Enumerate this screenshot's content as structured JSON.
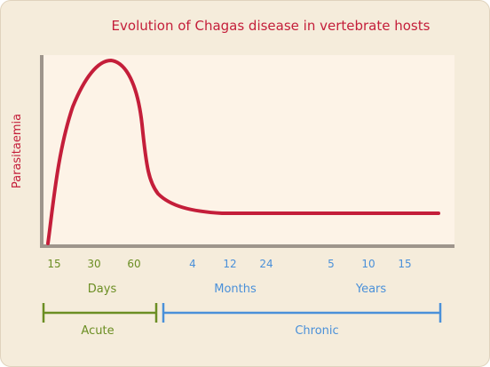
{
  "title": "Evolution of Chagas disease in vertebrate hosts",
  "y_label": "Parasitaemia",
  "x_ticks": {
    "days": [
      "15",
      "30",
      "60"
    ],
    "months": [
      "4",
      "12",
      "24"
    ],
    "years": [
      "5",
      "10",
      "15"
    ]
  },
  "units": {
    "days": "Days",
    "months": "Months",
    "years": "Years"
  },
  "phases": {
    "acute": "Acute",
    "chronic": "Chronic"
  },
  "colors": {
    "curve": "#c41e3a",
    "title": "#c41e3a",
    "axis": "#9e958c",
    "plot_bg": "#fdf3e7",
    "card_bg": "#f5ecdb",
    "acute": "#6b8e23",
    "chronic": "#4a90d9"
  }
}
